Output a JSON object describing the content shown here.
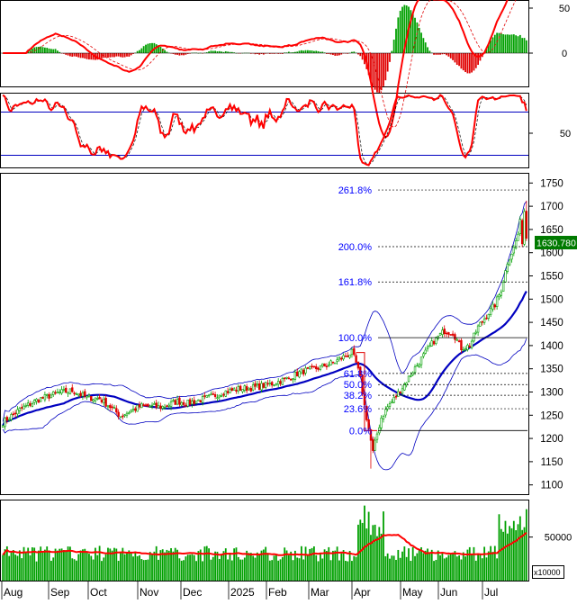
{
  "colors": {
    "up": "#00a000",
    "down": "#e00000",
    "ma_fast": "#ff0000",
    "ma_slow": "#0000c0",
    "bands": "#0000c0",
    "fib": "#0000ff",
    "last_price_bg": "#007a00",
    "panel_border": "#000000",
    "grid_dots": "#000000"
  },
  "macd_panel": {
    "ticks": [
      "50",
      "0"
    ]
  },
  "stoch_panel": {
    "ticks": [
      "50"
    ]
  },
  "price_panel": {
    "ticks": [
      "1750",
      "1700",
      "1650",
      "1600",
      "1550",
      "1500",
      "1450",
      "1400",
      "1350",
      "1300",
      "1250",
      "1200",
      "1150",
      "1100"
    ],
    "last_price": "1630.780",
    "fib_labels": [
      "261.8%",
      "200.0%",
      "161.8%",
      "100.0%",
      "61.8%",
      "50.0%",
      "38.2%",
      "23.6%",
      "0.0%"
    ]
  },
  "volume_panel": {
    "ticks": [
      "50000"
    ],
    "multiplier": "x10000"
  },
  "x_axis": {
    "labels": [
      "Aug",
      "Sep",
      "Oct",
      "Nov",
      "Dec",
      "2025",
      "Feb",
      "Mar",
      "Apr",
      "May",
      "Jun",
      "Jul"
    ]
  },
  "chart_data": {
    "type": "line",
    "title": "",
    "price_ylim": [
      1080,
      1770
    ],
    "fibonacci_levels": [
      {
        "label": "261.8%",
        "value": 1735
      },
      {
        "label": "200.0%",
        "value": 1613
      },
      {
        "label": "161.8%",
        "value": 1537
      },
      {
        "label": "100.0%",
        "value": 1417
      },
      {
        "label": "61.8%",
        "value": 1340
      },
      {
        "label": "50.0%",
        "value": 1316
      },
      {
        "label": "38.2%",
        "value": 1293
      },
      {
        "label": "23.6%",
        "value": 1264
      },
      {
        "label": "0.0%",
        "value": 1217
      }
    ],
    "price_series": [
      {
        "month": "Aug",
        "close": 1250
      },
      {
        "month": "Sep",
        "close": 1275
      },
      {
        "month": "Oct",
        "close": 1290
      },
      {
        "month": "Oct",
        "close": 1280
      },
      {
        "month": "Nov",
        "close": 1240
      },
      {
        "month": "Dec",
        "close": 1265
      },
      {
        "month": "2025",
        "close": 1290
      },
      {
        "month": "Feb",
        "close": 1305
      },
      {
        "month": "Mar",
        "close": 1330
      },
      {
        "month": "Apr",
        "close": 1230
      },
      {
        "month": "May",
        "close": 1260
      },
      {
        "month": "Jun",
        "close": 1320
      },
      {
        "month": "Jul",
        "close": 1480
      },
      {
        "month": "Jul",
        "close": 1630.78
      }
    ],
    "last_close": 1630.78,
    "volume_tick": 50000,
    "volume_unit": "x10000"
  }
}
